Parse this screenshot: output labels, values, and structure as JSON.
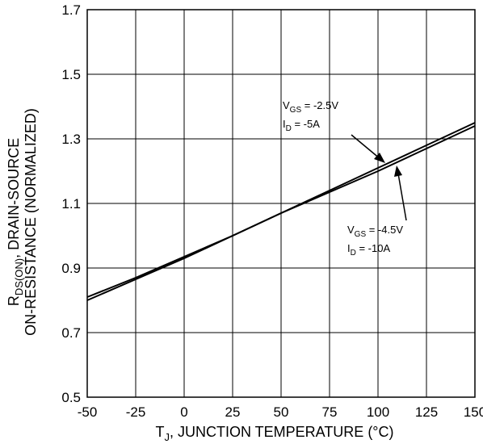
{
  "chart_data": {
    "type": "line",
    "title": "",
    "xlabel": {
      "main": "T",
      "sub": "J",
      "rest": ", JUNCTION TEMPERATURE (°C)"
    },
    "ylabel": {
      "line1_main": "R",
      "line1_sub": "DS(ON)",
      "line1_rest": ", DRAIN-SOURCE",
      "line2": "ON-RESISTANCE (NORMALIZED)"
    },
    "xlim": [
      -50,
      150
    ],
    "ylim": [
      0.5,
      1.7
    ],
    "x_ticks": [
      -50,
      -25,
      0,
      25,
      50,
      75,
      100,
      125,
      150
    ],
    "x_tick_labels": [
      "-50",
      "-25",
      "0",
      "25",
      "50",
      "75",
      "100",
      "125",
      "150"
    ],
    "y_ticks": [
      0.5,
      0.7,
      0.9,
      1.1,
      1.3,
      1.5,
      1.7
    ],
    "y_tick_labels": [
      "0.5",
      "0.7",
      "0.9",
      "1.1",
      "1.3",
      "1.5",
      "1.7"
    ],
    "grid": true,
    "series": [
      {
        "x": [
          -50,
          -25,
          0,
          25,
          50,
          75,
          100,
          125,
          150
        ],
        "y": [
          0.8,
          0.865,
          0.93,
          1.0,
          1.07,
          1.14,
          1.21,
          1.28,
          1.35
        ]
      },
      {
        "x": [
          -50,
          -25,
          0,
          25,
          50,
          75,
          100,
          125,
          150
        ],
        "y": [
          0.81,
          0.87,
          0.935,
          1.0,
          1.07,
          1.135,
          1.2,
          1.27,
          1.34
        ]
      }
    ],
    "annotations": [
      {
        "vgs_label": "V",
        "vgs_sub": "GS",
        "vgs_value": " = -2.5V",
        "id_label": "I",
        "id_sub": "D",
        "id_value": " = -5A"
      },
      {
        "vgs_label": "V",
        "vgs_sub": "GS",
        "vgs_value": " = -4.5V",
        "id_label": "I",
        "id_sub": "D",
        "id_value": " = -10A"
      }
    ]
  }
}
